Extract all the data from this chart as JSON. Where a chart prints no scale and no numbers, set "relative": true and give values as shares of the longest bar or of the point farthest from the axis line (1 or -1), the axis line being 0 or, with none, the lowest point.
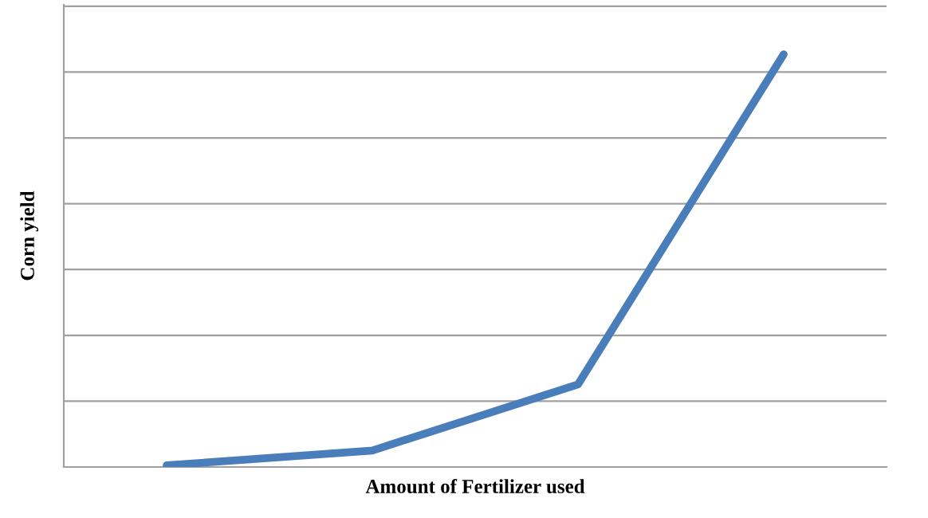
{
  "chart_data": {
    "type": "line",
    "relative": true,
    "xlabel": "Amount of Fertilizer used",
    "ylabel": "Corn yield",
    "categories": [
      null,
      null,
      null,
      null
    ],
    "series": [
      {
        "color": "#4a7ebb",
        "values": [
          0.004,
          0.04,
          0.2,
          1
        ]
      }
    ],
    "grid": "y",
    "legend": false,
    "marker": "none",
    "line_style": "solid"
  }
}
